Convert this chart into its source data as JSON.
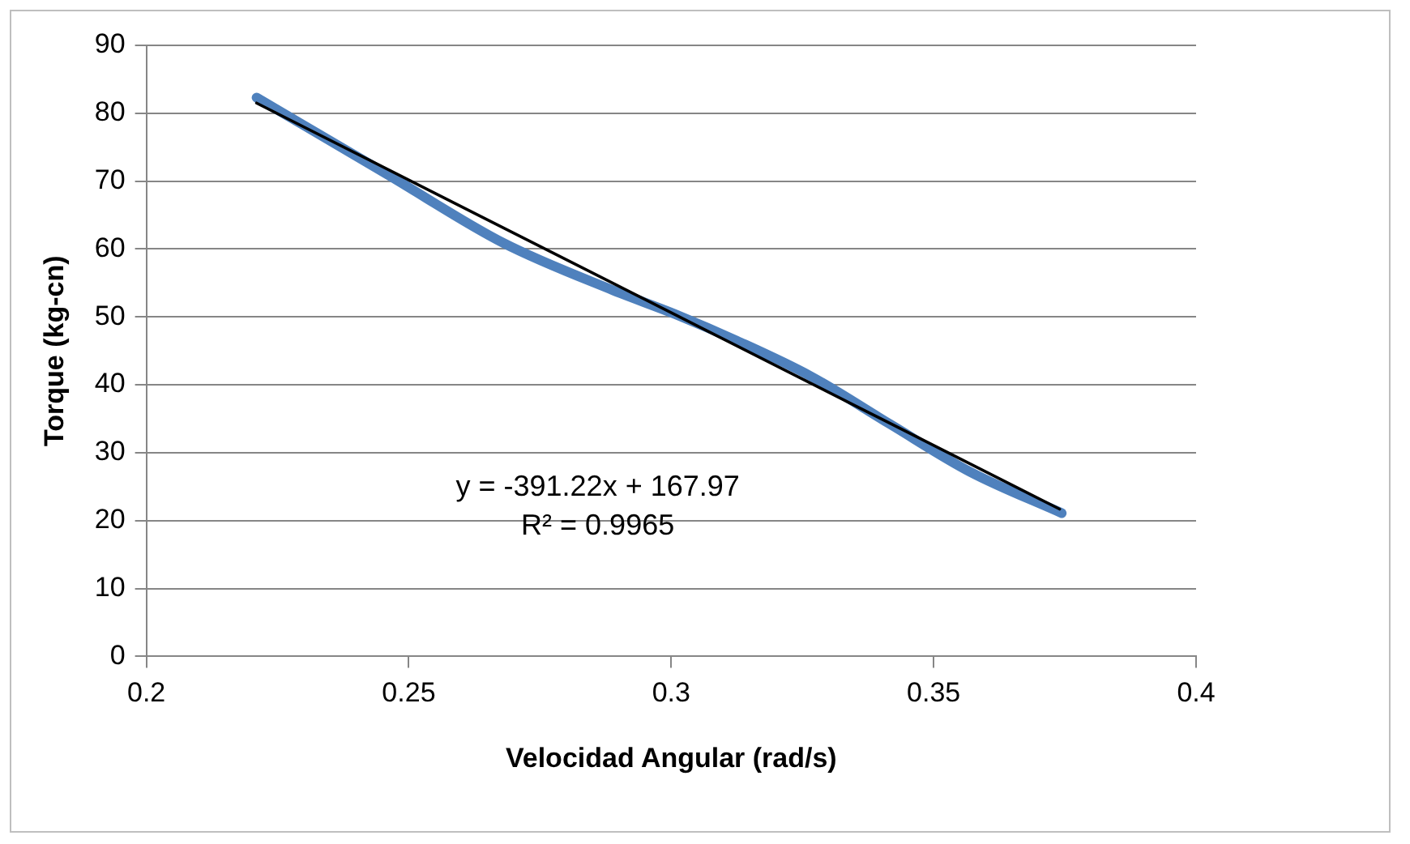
{
  "chart_data": {
    "type": "line",
    "xlabel": "Velocidad Angular (rad/s)",
    "ylabel": "Torque (kg-cn)",
    "xlim": [
      0.2,
      0.4
    ],
    "xticks": [
      0.2,
      0.25,
      0.3,
      0.35,
      0.4
    ],
    "ylim": [
      0,
      90
    ],
    "yticks": [
      0,
      10,
      20,
      30,
      40,
      50,
      60,
      70,
      80,
      90
    ],
    "grid": "y",
    "legend": false,
    "marker": "none",
    "line_style": "solid",
    "series": [
      {
        "color": "#4f81bd",
        "x": [
          0.221,
          0.2459,
          0.268,
          0.289,
          0.3008,
          0.3125,
          0.3265,
          0.3417,
          0.3569,
          0.3744
        ],
        "values": [
          82.3,
          71.0,
          60.9,
          53.9,
          50.4,
          46.5,
          41.3,
          34.2,
          27.2,
          21.1
        ]
      },
      {
        "type": "line",
        "color": "#000000",
        "x": [
          0.221,
          0.374
        ],
        "values": [
          81.5,
          21.7
        ]
      }
    ],
    "annotations": [
      "y = -391.22x + 167.97",
      "R² = 0.9965"
    ]
  }
}
